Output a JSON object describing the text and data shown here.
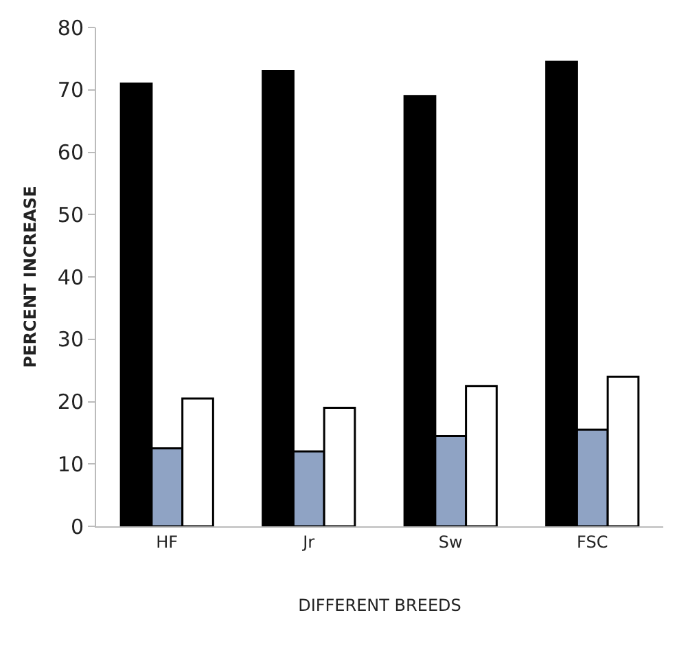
{
  "chart_data": {
    "type": "bar",
    "xlabel": "DIFFERENT BREEDS",
    "ylabel": "PERCENT INCREASE",
    "categories": [
      "HF",
      "Jr",
      "Sw",
      "FSC"
    ],
    "series": [
      {
        "color": "#000000",
        "values": [
          71,
          73,
          69,
          74.5
        ]
      },
      {
        "color": "#8fa3c4",
        "values": [
          12.5,
          12,
          14.5,
          15.5
        ]
      },
      {
        "color": "#ffffff",
        "values": [
          20.5,
          19,
          22.5,
          24
        ]
      }
    ],
    "ylim": [
      0,
      80
    ],
    "yticks": [
      0,
      10,
      20,
      30,
      40,
      50,
      60,
      70,
      80
    ],
    "grid": false
  }
}
